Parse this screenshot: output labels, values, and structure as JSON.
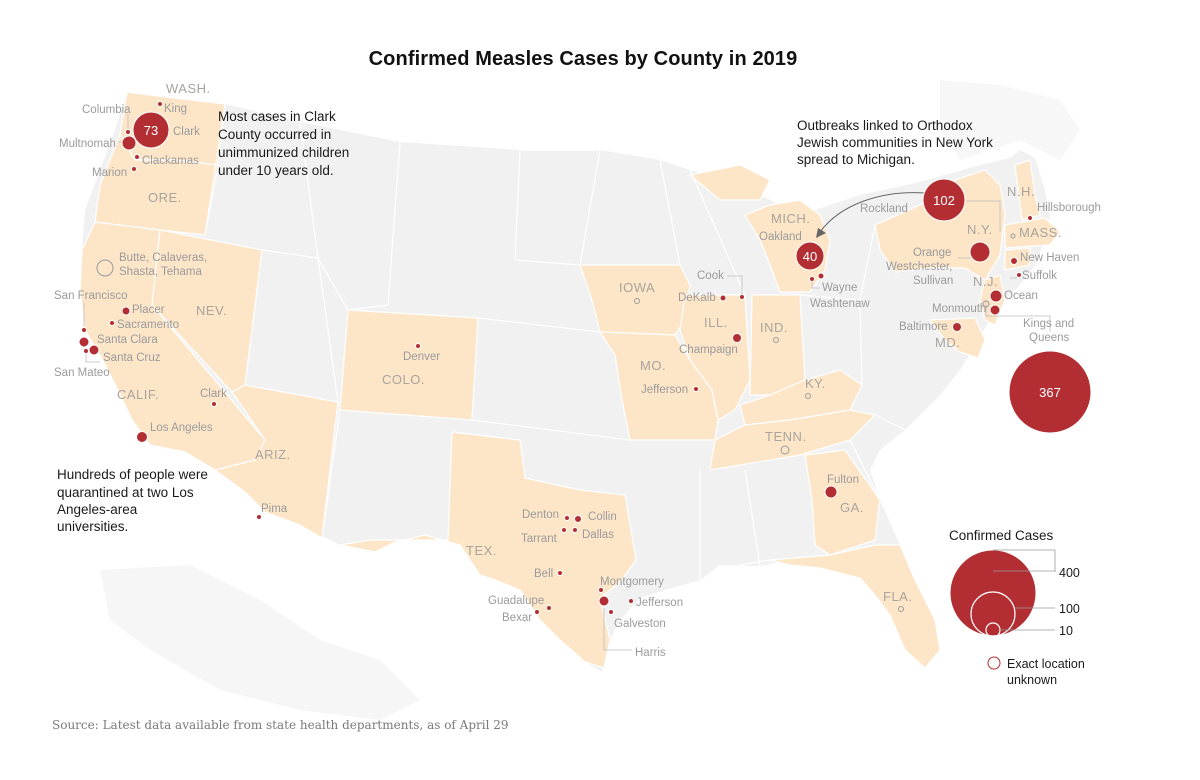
{
  "title": "Confirmed Measles Cases by County in 2019",
  "source": "Source: Latest data available from state health departments, as of April 29",
  "colors": {
    "affected_state": "#fde5c8",
    "other_state": "#f1f1f1",
    "border": "#ffffff",
    "bubble": "#b22e33",
    "state_label": "#a9a49c",
    "county_label": "#9b9b9b"
  },
  "state_labels": [
    {
      "name": "WASH."
    },
    {
      "name": "ORE."
    },
    {
      "name": "NEV."
    },
    {
      "name": "CALIF."
    },
    {
      "name": "ARIZ."
    },
    {
      "name": "COLO."
    },
    {
      "name": "TEX."
    },
    {
      "name": "IOWA"
    },
    {
      "name": "MO."
    },
    {
      "name": "ILL."
    },
    {
      "name": "IND."
    },
    {
      "name": "KY."
    },
    {
      "name": "TENN."
    },
    {
      "name": "GA."
    },
    {
      "name": "FLA."
    },
    {
      "name": "MICH."
    },
    {
      "name": "N.Y."
    },
    {
      "name": "N.J."
    },
    {
      "name": "MD."
    },
    {
      "name": "N.H."
    },
    {
      "name": "MASS."
    }
  ],
  "counties": [
    {
      "name": "King"
    },
    {
      "name": "Columbia"
    },
    {
      "name": "Multnomah"
    },
    {
      "name": "Clark"
    },
    {
      "name": "Clackamas"
    },
    {
      "name": "Marion"
    },
    {
      "name": "Butte, Calaveras,"
    },
    {
      "name": "Shasta, Tehama"
    },
    {
      "name": "San Francisco"
    },
    {
      "name": "Placer"
    },
    {
      "name": "Sacramento"
    },
    {
      "name": "Santa Clara"
    },
    {
      "name": "Santa Cruz"
    },
    {
      "name": "San Mateo"
    },
    {
      "name": "Clark"
    },
    {
      "name": "Los Angeles"
    },
    {
      "name": "Pima"
    },
    {
      "name": "Denver"
    },
    {
      "name": "Denton"
    },
    {
      "name": "Collin"
    },
    {
      "name": "Tarrant"
    },
    {
      "name": "Dallas"
    },
    {
      "name": "Bell"
    },
    {
      "name": "Montgomery"
    },
    {
      "name": "Guadalupe"
    },
    {
      "name": "Jefferson"
    },
    {
      "name": "Bexar"
    },
    {
      "name": "Galveston"
    },
    {
      "name": "Harris"
    },
    {
      "name": "Cook"
    },
    {
      "name": "DeKalb"
    },
    {
      "name": "Champaign"
    },
    {
      "name": "Jefferson"
    },
    {
      "name": "Fulton"
    },
    {
      "name": "Oakland"
    },
    {
      "name": "Wayne"
    },
    {
      "name": "Washtenaw"
    },
    {
      "name": "Rockland"
    },
    {
      "name": "Orange"
    },
    {
      "name": "Westchester,"
    },
    {
      "name": "Sullivan"
    },
    {
      "name": "Baltimore"
    },
    {
      "name": "Monmouth"
    },
    {
      "name": "Ocean"
    },
    {
      "name": "Hillsborough"
    },
    {
      "name": "New Haven"
    },
    {
      "name": "Suffolk"
    },
    {
      "name": "Kings and"
    },
    {
      "name": "Queens"
    }
  ],
  "bubble_values": {
    "clark_wa": "73",
    "oakland": "40",
    "rockland": "102",
    "kings_queens": "367"
  },
  "annotations": {
    "clark": [
      "Most cases in Clark",
      "County occurred in",
      "unimmunized children",
      "under 10 years old."
    ],
    "orthodox": [
      "Outbreaks linked to Orthodox",
      "Jewish communities in New York",
      "spread to Michigan."
    ],
    "la": [
      "Hundreds of people were",
      "quarantined at two Los",
      "Angeles-area",
      "universities."
    ]
  },
  "legend": {
    "title": "Confirmed Cases",
    "sizes": [
      {
        "label": "400"
      },
      {
        "label": "100"
      },
      {
        "label": "10"
      }
    ],
    "unknown": [
      "Exact location",
      "unknown"
    ]
  }
}
